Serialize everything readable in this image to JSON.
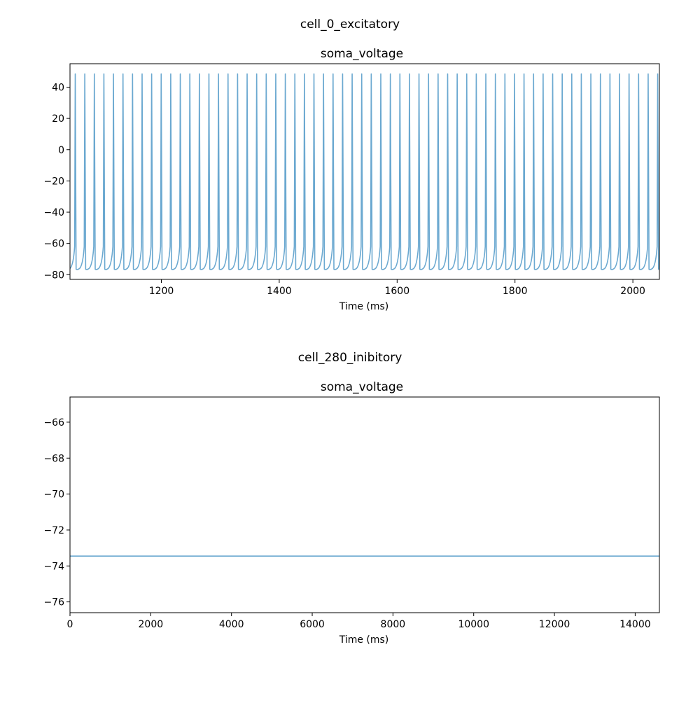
{
  "chart_data": [
    {
      "type": "line",
      "suptitle": "cell_0_excitatory",
      "title": "soma_voltage",
      "xlabel": "Time (ms)",
      "ylabel": "",
      "xlim": [
        1045,
        2045
      ],
      "ylim": [
        -83,
        55
      ],
      "xticks": [
        1200,
        1400,
        1600,
        1800,
        2000
      ],
      "xtick_labels": [
        "1200",
        "1400",
        "1600",
        "1800",
        "2000"
      ],
      "yticks": [
        40,
        20,
        0,
        -20,
        -40,
        -60,
        -80
      ],
      "ytick_labels": [
        "40",
        "20",
        "0",
        "−20",
        "−40",
        "−60",
        "−80"
      ],
      "series": [
        {
          "color": "#6aa8d0",
          "pattern": "periodic_spikes",
          "resting_mv": -76,
          "peak_mv": 48.5,
          "spike_period_ms": 16.2,
          "x_start": 1045,
          "x_end": 2045
        }
      ],
      "grid": false
    },
    {
      "type": "line",
      "suptitle": "cell_280_inibitory",
      "title": "soma_voltage",
      "xlabel": "Time (ms)",
      "ylabel": "",
      "xlim": [
        0,
        14600
      ],
      "ylim": [
        -76.6,
        -64.6
      ],
      "xticks": [
        0,
        2000,
        4000,
        6000,
        8000,
        10000,
        12000,
        14000
      ],
      "xtick_labels": [
        "0",
        "2000",
        "4000",
        "6000",
        "8000",
        "10000",
        "12000",
        "14000"
      ],
      "yticks": [
        -66,
        -68,
        -70,
        -72,
        -74,
        -76
      ],
      "ytick_labels": [
        "−66",
        "−68",
        "−70",
        "−72",
        "−74",
        "−76"
      ],
      "series": [
        {
          "color": "#6aa8d0",
          "x": [
            0,
            14600
          ],
          "y": [
            -73.45,
            -73.45
          ]
        }
      ],
      "grid": false
    }
  ]
}
